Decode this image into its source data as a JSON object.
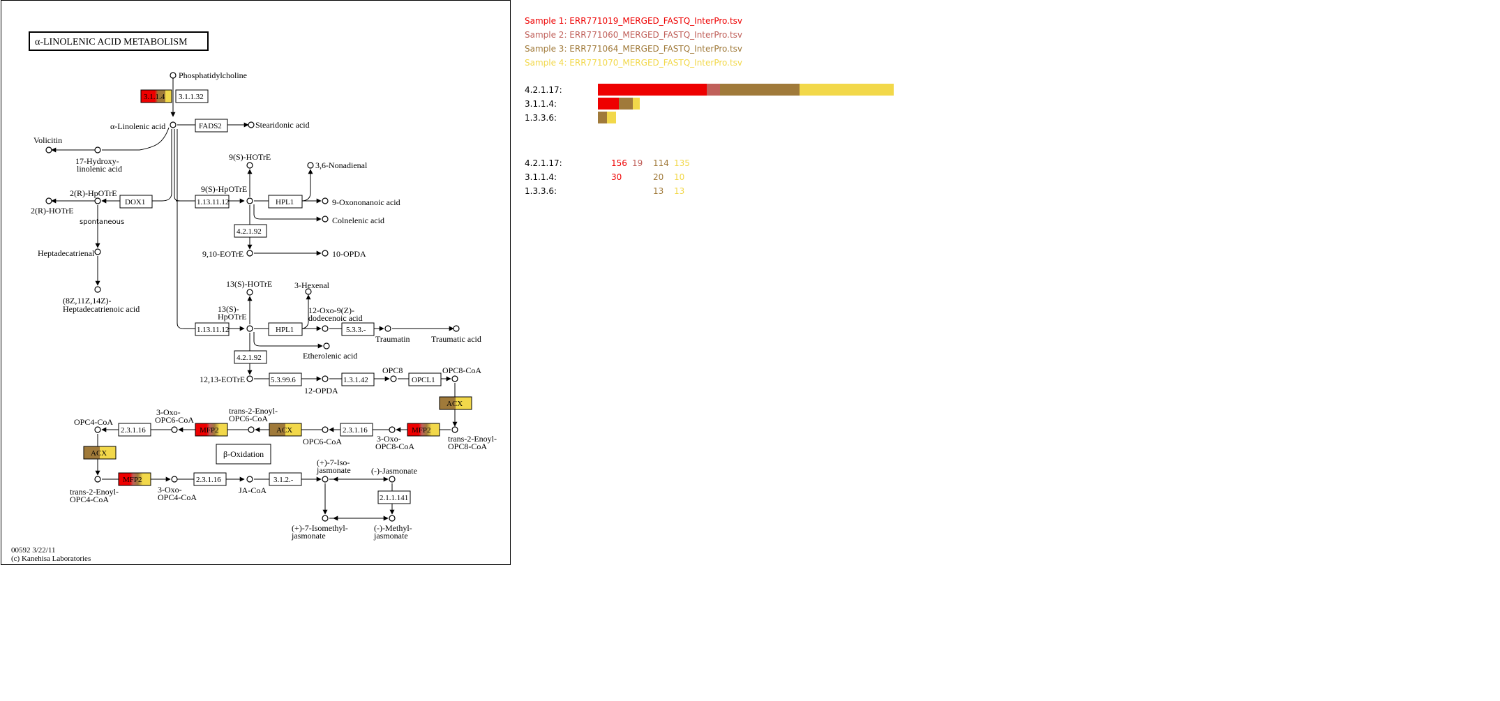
{
  "map": {
    "title": "α-LINOLENIC ACID METABOLISM",
    "footer_id": "00592 3/22/11",
    "footer_copyright": "(c) Kanehisa Laboratories",
    "compounds": {
      "phosphatidylcholine": "Phosphatidylcholine",
      "alpha_linolenic": "α-Linolenic acid",
      "stearidonic": "Stearidonic acid",
      "volicitin": "Volicitin",
      "hydroxy_linolenic_1": "17-Hydroxy-",
      "hydroxy_linolenic_2": "linolenic acid",
      "r_hpotre": "2(R)-HpOTrE",
      "r_hotre": "2(R)-HOTrE",
      "spontaneous": "spontaneous",
      "heptadecatrienal": "Heptadecatrienal",
      "heptadecatrienoic_1": "(8Z,11Z,14Z)-",
      "heptadecatrienoic_2": "Heptadecatrienoic acid",
      "s9_hotre": "9(S)-HOTrE",
      "s9_hpotre": "9(S)-HpOTrE",
      "nonadienal": "3,6-Nonadienal",
      "oxononanoic": "9-Oxononanoic acid",
      "colnelenic": "Colnelenic acid",
      "eotre_9_10": "9,10-EOTrE",
      "opda_10": "10-OPDA",
      "s13_hotre": "13(S)-HOTrE",
      "hexenal": "3-Hexenal",
      "s13_hpotre_1": "13(S)-",
      "s13_hpotre_2": "HpOTrE",
      "oxo_dodecenoic_1": "12-Oxo-9(Z)-",
      "oxo_dodecenoic_2": "dodecenoic acid",
      "traumatin": "Traumatin",
      "traumatic": "Traumatic acid",
      "etherolenic": "Etherolenic acid",
      "eotre_12_13": "12,13-EOTrE",
      "opda_12": "12-OPDA",
      "opc8": "OPC8",
      "opc8_coa": "OPC8-CoA",
      "trans_opc8_1": "trans-2-Enoyl-",
      "trans_opc8_2": "OPC8-CoA",
      "oxo_opc8_1": "3-Oxo-",
      "oxo_opc8_2": "OPC8-CoA",
      "opc6_coa": "OPC6-CoA",
      "trans_opc6_1": "trans-2-Enoyl-",
      "trans_opc6_2": "OPC6-CoA",
      "oxo_opc6_1": "3-Oxo-",
      "oxo_opc6_2": "OPC6-CoA",
      "opc4_coa": "OPC4-CoA",
      "trans_opc4_1": "trans-2-Enoyl-",
      "trans_opc4_2": "OPC4-CoA",
      "oxo_opc4_1": "3-Oxo-",
      "oxo_opc4_2": "OPC4-CoA",
      "ja_coa": "JA-CoA",
      "iso_jasmonate_1": "(+)-7-Iso-",
      "iso_jasmonate_2": "jasmonate",
      "jasmonate": "(-)-Jasmonate",
      "isomethyl_1": "(+)-7-Isomethyl-",
      "isomethyl_2": "jasmonate",
      "methyl_1": "(-)-Methyl-",
      "methyl_2": "jasmonate"
    },
    "enzymes": {
      "e3_1_1_4": "3.1.1.4",
      "e3_1_1_32": "3.1.1.32",
      "fads2": "FADS2",
      "dox1": "DOX1",
      "e1_13_11_12_a": "1.13.11.12",
      "hpl1_a": "HPL1",
      "e4_2_1_92_a": "4.2.1.92",
      "e1_13_11_12_b": "1.13.11.12",
      "hpl1_b": "HPL1",
      "e5_3_3": "5.3.3.-",
      "e4_2_1_92_b": "4.2.1.92",
      "e5_3_99_6": "5.3.99.6",
      "e1_3_1_42": "1.3.1.42",
      "opcl1": "OPCL1",
      "acx_a": "ACX",
      "mfp2_a": "MFP2",
      "e2_3_1_16_a": "2.3.1.16",
      "acx_b": "ACX",
      "mfp2_b": "MFP2",
      "e2_3_1_16_b": "2.3.1.16",
      "acx_c": "ACX",
      "mfp2_c": "MFP2",
      "e2_3_1_16_c": "2.3.1.16",
      "e3_1_2": "3.1.2.-",
      "e2_1_1_141": "2.1.1.141",
      "beta_oxidation": "β-Oxidation"
    }
  },
  "samples": [
    {
      "label": "Sample 1: ERR771019_MERGED_FASTQ_InterPro.tsv",
      "color": "#ee0000"
    },
    {
      "label": "Sample 2: ERR771060_MERGED_FASTQ_InterPro.tsv",
      "color": "#c0605a"
    },
    {
      "label": "Sample 3: ERR771064_MERGED_FASTQ_InterPro.tsv",
      "color": "#a07a3a"
    },
    {
      "label": "Sample 4: ERR771070_MERGED_FASTQ_InterPro.tsv",
      "color": "#f2d84a"
    }
  ],
  "chart_data": {
    "type": "bar",
    "stacked": true,
    "orientation": "horizontal",
    "categories": [
      "4.2.1.17:",
      "3.1.1.4:",
      "1.3.3.6:"
    ],
    "series": [
      {
        "name": "Sample 1: ERR771019_MERGED_FASTQ_InterPro.tsv",
        "values": [
          156,
          30,
          0
        ]
      },
      {
        "name": "Sample 2: ERR771060_MERGED_FASTQ_InterPro.tsv",
        "values": [
          19,
          0,
          0
        ]
      },
      {
        "name": "Sample 3: ERR771064_MERGED_FASTQ_InterPro.tsv",
        "values": [
          114,
          20,
          13
        ]
      },
      {
        "name": "Sample 4: ERR771070_MERGED_FASTQ_InterPro.tsv",
        "values": [
          135,
          10,
          13
        ]
      }
    ]
  },
  "counts": [
    {
      "label": "4.2.1.17:",
      "values": [
        "156",
        "19",
        "114",
        "135"
      ]
    },
    {
      "label": "3.1.1.4:",
      "values": [
        "30",
        "",
        "20",
        "10"
      ]
    },
    {
      "label": "1.3.3.6:",
      "values": [
        "",
        "",
        "13",
        "13"
      ]
    }
  ]
}
